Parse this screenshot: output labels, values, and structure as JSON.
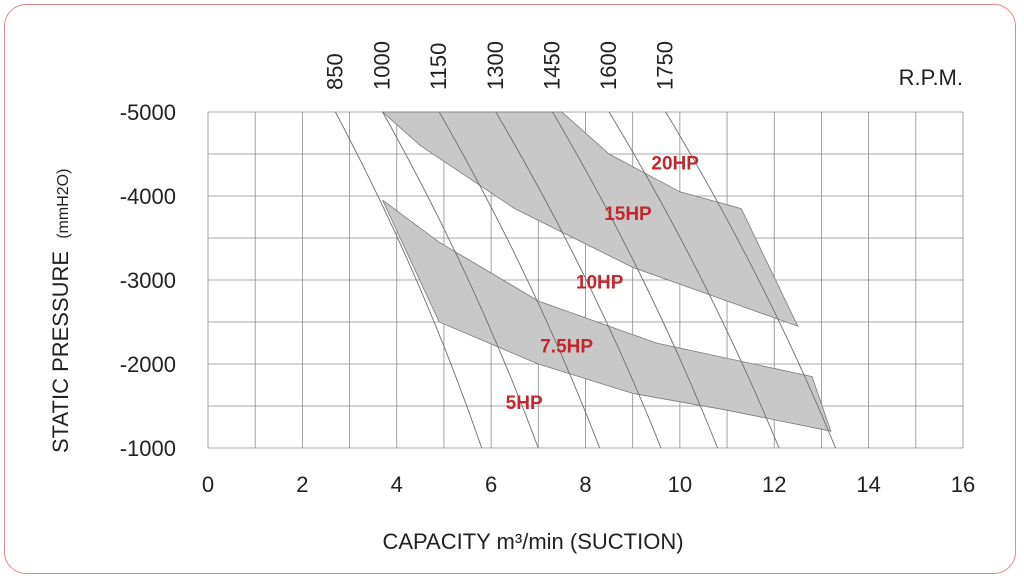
{
  "chart_data": {
    "type": "line",
    "xlabel": "CAPACITY m³/min (SUCTION)",
    "ylabel": "STATIC PRESSURE",
    "ylabel_unit": "(mmH2O)",
    "xlim": [
      0,
      16
    ],
    "ylim": [
      -1000,
      -5000
    ],
    "x_ticks": [
      "0",
      "2",
      "4",
      "6",
      "8",
      "10",
      "12",
      "14",
      "16"
    ],
    "y_ticks": [
      "-5000",
      "-4000",
      "-3000",
      "-2000",
      "-1000"
    ],
    "grid": true,
    "rpm_label": "R.P.M.",
    "rpm_series": [
      {
        "label": "850",
        "top_x": 2.7,
        "bottom_x": 5.8
      },
      {
        "label": "1000",
        "top_x": 3.7,
        "bottom_x": 7.0
      },
      {
        "label": "1150",
        "top_x": 4.9,
        "bottom_x": 8.3
      },
      {
        "label": "1300",
        "top_x": 6.1,
        "bottom_x": 9.6
      },
      {
        "label": "1450",
        "top_x": 7.3,
        "bottom_x": 10.8
      },
      {
        "label": "1600",
        "top_x": 8.5,
        "bottom_x": 12.1
      },
      {
        "label": "1750",
        "top_x": 9.7,
        "bottom_x": 13.3
      }
    ],
    "bands": [
      {
        "name": "upper",
        "points": [
          [
            3.7,
            -5000
          ],
          [
            7.5,
            -5000
          ],
          [
            8.5,
            -4500
          ],
          [
            10,
            -4050
          ],
          [
            11.3,
            -3850
          ],
          [
            12.5,
            -2450
          ],
          [
            11,
            -2750
          ],
          [
            9,
            -3150
          ],
          [
            6.5,
            -3850
          ],
          [
            4.5,
            -4600
          ]
        ]
      },
      {
        "name": "lower",
        "points": [
          [
            3.7,
            -3950
          ],
          [
            4.9,
            -3450
          ],
          [
            7,
            -2750
          ],
          [
            9.5,
            -2250
          ],
          [
            12.8,
            -1850
          ],
          [
            13.2,
            -1200
          ],
          [
            11,
            -1450
          ],
          [
            9,
            -1650
          ],
          [
            7,
            -2000
          ],
          [
            4.9,
            -2500
          ]
        ]
      }
    ],
    "power_labels": [
      {
        "text": "20HP",
        "x": 9.9,
        "y": -4400
      },
      {
        "text": "15HP",
        "x": 8.9,
        "y": -3800
      },
      {
        "text": "10HP",
        "x": 8.3,
        "y": -2980
      },
      {
        "text": "7.5HP",
        "x": 7.6,
        "y": -2220
      },
      {
        "text": "5HP",
        "x": 6.7,
        "y": -1550
      }
    ]
  }
}
